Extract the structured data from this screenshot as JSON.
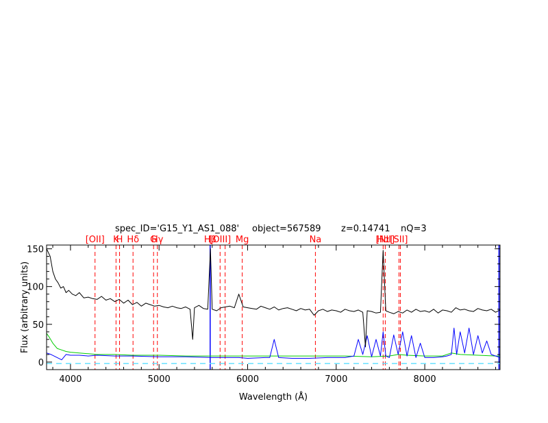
{
  "chart_data": {
    "type": "line",
    "header": {
      "spec_id": "spec_ID='G15_Y1_AS1_088'",
      "object": "object=567589",
      "redshift": "z=0.14741",
      "quality": "nQ=3"
    },
    "xlabel": "Wavelength (Å)",
    "ylabel": "Flux (arbitrary units)",
    "xlim": [
      3730,
      8850
    ],
    "ylim": [
      -10,
      155
    ],
    "xticks": [
      4000,
      5000,
      6000,
      7000,
      8000
    ],
    "yticks": [
      0,
      50,
      100,
      150
    ],
    "grid": false,
    "colors": {
      "flux": "#000000",
      "error": "#0000ff",
      "template": "#00cc00",
      "zero_level": "#66e0ff",
      "line_markers": "#ff0000",
      "sky_markers": "#0000ff"
    },
    "line_markers": [
      {
        "label": "[OII]",
        "x": 4277
      },
      {
        "label": "K",
        "x": 4514
      },
      {
        "label": "H",
        "x": 4554
      },
      {
        "label": "Hδ",
        "x": 4706
      },
      {
        "label": "G",
        "x": 4938
      },
      {
        "label": "Hγ",
        "x": 4981
      },
      {
        "label": "Hβ",
        "x": 5578
      },
      {
        "label": "[OIII]",
        "x": 5689
      },
      {
        "label": "",
        "x": 5746
      },
      {
        "label": "Mg",
        "x": 5939
      },
      {
        "label": "Na",
        "x": 6765
      },
      {
        "label": "Hα",
        "x": 7530
      },
      {
        "label": "[NII]",
        "x": 7554
      },
      {
        "label": "[SII]",
        "x": 7709
      },
      {
        "label": "",
        "x": 7725
      }
    ],
    "sky_markers": [
      {
        "x": 5577
      },
      {
        "x": 8838
      }
    ],
    "series": [
      {
        "key": "flux",
        "x": [
          3730,
          3770,
          3800,
          3830,
          3860,
          3890,
          3920,
          3950,
          3980,
          4020,
          4060,
          4100,
          4150,
          4200,
          4250,
          4300,
          4350,
          4400,
          4450,
          4500,
          4550,
          4600,
          4650,
          4700,
          4750,
          4800,
          4850,
          4900,
          4950,
          5000,
          5050,
          5100,
          5150,
          5200,
          5250,
          5300,
          5350,
          5380,
          5400,
          5450,
          5500,
          5550,
          5580,
          5600,
          5650,
          5700,
          5750,
          5800,
          5850,
          5900,
          5950,
          6000,
          6050,
          6100,
          6150,
          6200,
          6250,
          6300,
          6350,
          6400,
          6450,
          6500,
          6550,
          6600,
          6650,
          6700,
          6750,
          6800,
          6850,
          6900,
          6950,
          7000,
          7050,
          7100,
          7150,
          7200,
          7250,
          7300,
          7330,
          7350,
          7400,
          7450,
          7500,
          7530,
          7560,
          7600,
          7650,
          7700,
          7750,
          7800,
          7850,
          7900,
          7950,
          8000,
          8050,
          8100,
          8150,
          8200,
          8250,
          8300,
          8350,
          8400,
          8450,
          8500,
          8550,
          8600,
          8650,
          8700,
          8750,
          8800,
          8850
        ],
        "values": [
          150,
          140,
          120,
          110,
          105,
          98,
          100,
          92,
          95,
          90,
          88,
          92,
          85,
          86,
          84,
          83,
          87,
          82,
          84,
          80,
          83,
          78,
          82,
          76,
          79,
          74,
          78,
          76,
          74,
          75,
          73,
          72,
          74,
          72,
          71,
          73,
          70,
          30,
          72,
          75,
          71,
          70,
          150,
          70,
          68,
          72,
          73,
          74,
          72,
          90,
          73,
          72,
          71,
          70,
          74,
          72,
          70,
          73,
          69,
          71,
          72,
          70,
          68,
          71,
          69,
          70,
          62,
          68,
          70,
          67,
          69,
          68,
          66,
          70,
          68,
          67,
          69,
          66,
          20,
          68,
          67,
          65,
          66,
          148,
          68,
          66,
          64,
          67,
          65,
          69,
          66,
          70,
          67,
          68,
          66,
          70,
          65,
          69,
          68,
          66,
          72,
          69,
          70,
          68,
          67,
          71,
          69,
          68,
          70,
          66,
          69
        ]
      },
      {
        "key": "error",
        "x": [
          3730,
          3780,
          3850,
          3900,
          3950,
          4000,
          4100,
          4200,
          4300,
          4500,
          4700,
          5000,
          5300,
          5600,
          5900,
          6000,
          6200,
          6250,
          6300,
          6350,
          6500,
          6700,
          6900,
          7100,
          7200,
          7250,
          7300,
          7350,
          7400,
          7450,
          7500,
          7530,
          7560,
          7600,
          7650,
          7700,
          7750,
          7800,
          7850,
          7900,
          7950,
          8000,
          8100,
          8200,
          8250,
          8300,
          8330,
          8360,
          8400,
          8450,
          8500,
          8550,
          8600,
          8650,
          8700,
          8750,
          8800,
          8850
        ],
        "values": [
          12,
          10,
          6,
          3,
          10,
          9,
          9,
          8,
          9,
          8,
          8,
          7,
          7,
          6,
          6,
          5,
          6,
          6,
          30,
          6,
          5,
          5,
          6,
          6,
          8,
          30,
          10,
          35,
          7,
          30,
          8,
          40,
          8,
          6,
          36,
          10,
          40,
          8,
          35,
          6,
          25,
          6,
          6,
          7,
          8,
          10,
          45,
          10,
          40,
          12,
          45,
          10,
          35,
          12,
          28,
          10,
          8,
          6
        ]
      },
      {
        "key": "template",
        "x": [
          3730,
          3760,
          3800,
          3850,
          3900,
          3950,
          4000,
          4100,
          4200,
          4300,
          4500,
          4700,
          5000,
          5300,
          5600,
          5900,
          6200,
          6500,
          6800,
          7100,
          7400,
          7600,
          7700,
          7800,
          8000,
          8200,
          8300,
          8400,
          8600,
          8800,
          8850
        ],
        "values": [
          38,
          33,
          25,
          18,
          16,
          14,
          13,
          12,
          11,
          10,
          10,
          9,
          9,
          8,
          8,
          8,
          8,
          8,
          8,
          8,
          7,
          8,
          10,
          9,
          8,
          8,
          12,
          10,
          9,
          8,
          8
        ]
      }
    ]
  }
}
